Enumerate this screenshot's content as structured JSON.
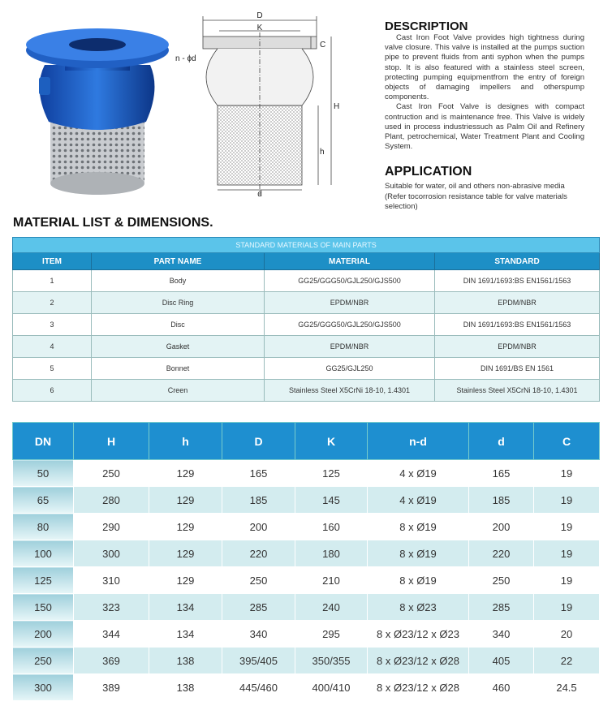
{
  "drawing": {
    "labels": [
      "D",
      "K",
      "n - ϕd",
      "C",
      "H",
      "h",
      "d"
    ]
  },
  "description": {
    "title": "DESCRIPTION",
    "paragraphs": [
      "Cast Iron Foot Valve provides high tightness during valve closure. This valve is installed at the pumps suction pipe to prevent fluids from anti syphon when the pumps stop. It is also featured with a stainless steel screen, protecting pumping equipmentfrom the entry of foreign objects of damaging impellers and otherspump components.",
      "Cast Iron Foot Valve is designes with compact contruction and is maintenance free. This Valve is widely used in process industriessuch as Palm Oil and Refinery Plant, petrochemical, Water Treatment Plant and Cooling System."
    ]
  },
  "application": {
    "title": "APPLICATION",
    "text": "Suitable for water, oil and others non-abrasive media (Refer tocorrosion resistance table for valve materials selection)"
  },
  "section_title": "MATERIAL LIST & DIMENSIONS.",
  "materials_table": {
    "caption": "STANDARD MATERIALS OF MAIN PARTS",
    "headers": [
      "ITEM",
      "PART NAME",
      "MATERIAL",
      "STANDARD"
    ],
    "rows": [
      [
        "1",
        "Body",
        "GG25/GGG50/GJL250/GJS500",
        "DIN 1691/1693:BS EN1561/1563"
      ],
      [
        "2",
        "Disc Ring",
        "EPDM/NBR",
        "EPDM/NBR"
      ],
      [
        "3",
        "Disc",
        "GG25/GGG50/GJL250/GJS500",
        "DIN 1691/1693:BS EN1561/1563"
      ],
      [
        "4",
        "Gasket",
        "EPDM/NBR",
        "EPDM/NBR"
      ],
      [
        "5",
        "Bonnet",
        "GG25/GJL250",
        "DIN 1691/BS EN 1561"
      ],
      [
        "6",
        "Creen",
        "Stainless Steel X5CrNi 18-10, 1.4301",
        "Stainless Steel X5CrNi 18-10, 1.4301"
      ]
    ]
  },
  "dimensions_table": {
    "headers": [
      "DN",
      "H",
      "h",
      "D",
      "K",
      "n-d",
      "d",
      "C"
    ],
    "rows": [
      [
        "50",
        "250",
        "129",
        "165",
        "125",
        "4 x Ø19",
        "165",
        "19"
      ],
      [
        "65",
        "280",
        "129",
        "185",
        "145",
        "4 x Ø19",
        "185",
        "19"
      ],
      [
        "80",
        "290",
        "129",
        "200",
        "160",
        "8 x Ø19",
        "200",
        "19"
      ],
      [
        "100",
        "300",
        "129",
        "220",
        "180",
        "8 x Ø19",
        "220",
        "19"
      ],
      [
        "125",
        "310",
        "129",
        "250",
        "210",
        "8 x Ø19",
        "250",
        "19"
      ],
      [
        "150",
        "323",
        "134",
        "285",
        "240",
        "8 x Ø23",
        "285",
        "19"
      ],
      [
        "200",
        "344",
        "134",
        "340",
        "295",
        "8 x Ø23/12 x Ø23",
        "340",
        "20"
      ],
      [
        "250",
        "369",
        "138",
        "395/405",
        "350/355",
        "8 x Ø23/12 x Ø28",
        "405",
        "22"
      ],
      [
        "300",
        "389",
        "138",
        "445/460",
        "400/410",
        "8 x Ø23/12 x Ø28",
        "460",
        "24.5"
      ]
    ]
  }
}
